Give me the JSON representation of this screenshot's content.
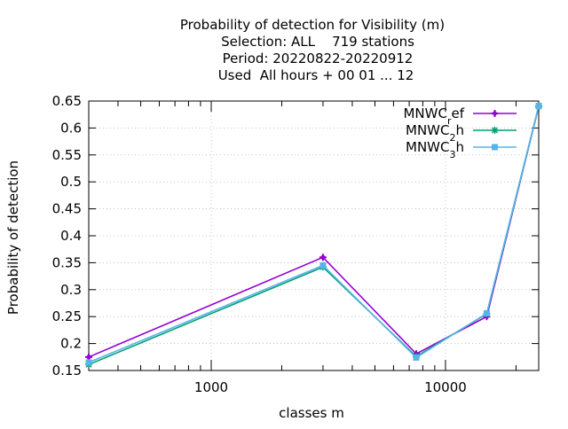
{
  "chart_data": {
    "type": "line",
    "title_lines": [
      "Probability of detection  for Visibility (m)",
      "Selection: ALL    719 stations",
      "Period: 20220822-20220912",
      "Used  All hours + 00 01 ... 12"
    ],
    "xlabel": "classes m",
    "ylabel": "Probability of detection",
    "x_scale": "log",
    "xlim": [
      300,
      25000
    ],
    "ylim": [
      0.15,
      0.65
    ],
    "x_ticks": [
      {
        "value": 1000,
        "label": "1000"
      },
      {
        "value": 10000,
        "label": "10000"
      }
    ],
    "y_ticks": [
      {
        "value": 0.15,
        "label": "0.15"
      },
      {
        "value": 0.2,
        "label": "0.2"
      },
      {
        "value": 0.25,
        "label": "0.25"
      },
      {
        "value": 0.3,
        "label": "0.3"
      },
      {
        "value": 0.35,
        "label": "0.35"
      },
      {
        "value": 0.4,
        "label": "0.4"
      },
      {
        "value": 0.45,
        "label": "0.45"
      },
      {
        "value": 0.5,
        "label": "0.5"
      },
      {
        "value": 0.55,
        "label": "0.55"
      },
      {
        "value": 0.6,
        "label": "0.6"
      },
      {
        "value": 0.65,
        "label": "0.65"
      }
    ],
    "x": [
      300,
      3000,
      7500,
      15000,
      25000
    ],
    "grid": true,
    "legend_position": "top-right",
    "series": [
      {
        "name": "MNWC",
        "sub": "r",
        "rest": "ef",
        "color": "#9400d3",
        "marker": "plus",
        "values": [
          0.175,
          0.36,
          0.181,
          0.25,
          0.64
        ]
      },
      {
        "name": "MNWC",
        "sub": "2",
        "rest": "h",
        "color": "#009e73",
        "marker": "star",
        "values": [
          0.161,
          0.342,
          0.176,
          0.255,
          0.64
        ]
      },
      {
        "name": "MNWC",
        "sub": "3",
        "rest": "h",
        "color": "#56b4e9",
        "marker": "square",
        "values": [
          0.165,
          0.345,
          0.174,
          0.256,
          0.641
        ]
      }
    ]
  }
}
